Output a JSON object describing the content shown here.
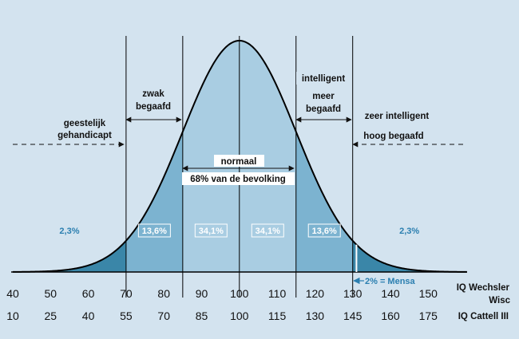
{
  "chart_data": {
    "type": "area",
    "title": "",
    "xlabel": "IQ Wechsler Wisc",
    "xlabel2": "IQ Cattell III",
    "xlim": [
      40,
      160
    ],
    "mean": 100,
    "sd": 15,
    "wechsler_ticks": [
      "40",
      "50",
      "60",
      "70",
      "80",
      "90",
      "100",
      "110",
      "120",
      "130",
      "140",
      "150"
    ],
    "cattell_ticks": [
      "10",
      "25",
      "40",
      "55",
      "70",
      "85",
      "100",
      "115",
      "130",
      "145",
      "160",
      "175"
    ],
    "boundaries": [
      70,
      85,
      115,
      130
    ],
    "mensa_cut": 131,
    "segments": [
      {
        "from": 40,
        "to": 70,
        "label": "2,3%",
        "color": "#3a86a8"
      },
      {
        "from": 70,
        "to": 85,
        "label": "13,6%",
        "color": "#7cb3d0"
      },
      {
        "from": 85,
        "to": 100,
        "label": "34,1%",
        "color": "#a9cde2"
      },
      {
        "from": 100,
        "to": 115,
        "label": "34,1%",
        "color": "#a9cde2"
      },
      {
        "from": 115,
        "to": 130,
        "label": "13,6%",
        "color": "#7cb3d0"
      },
      {
        "from": 130,
        "to": 160,
        "label": "2,3%",
        "color": "#3a86a8"
      }
    ],
    "annotations": {
      "geestelijk_1": "geestelijk",
      "geestelijk_2": "gehandicapt",
      "zwak_1": "zwak",
      "zwak_2": "begaafd",
      "normaal": "normaal",
      "normaal_sub": "68% van de bevolking",
      "intelligent": "intelligent",
      "meer_1": "meer",
      "meer_2": "begaafd",
      "zeer_1": "zeer intelligent",
      "zeer_2": "hoog begaafd",
      "mensa": "2% = Mensa"
    },
    "colors": {
      "background": "#d3e3ef",
      "dark": "#3a86a8",
      "mid": "#7cb3d0",
      "light": "#a9cde2",
      "pct_text_dark": "#2b7fb0",
      "pct_text_light": "#ffffff"
    }
  }
}
